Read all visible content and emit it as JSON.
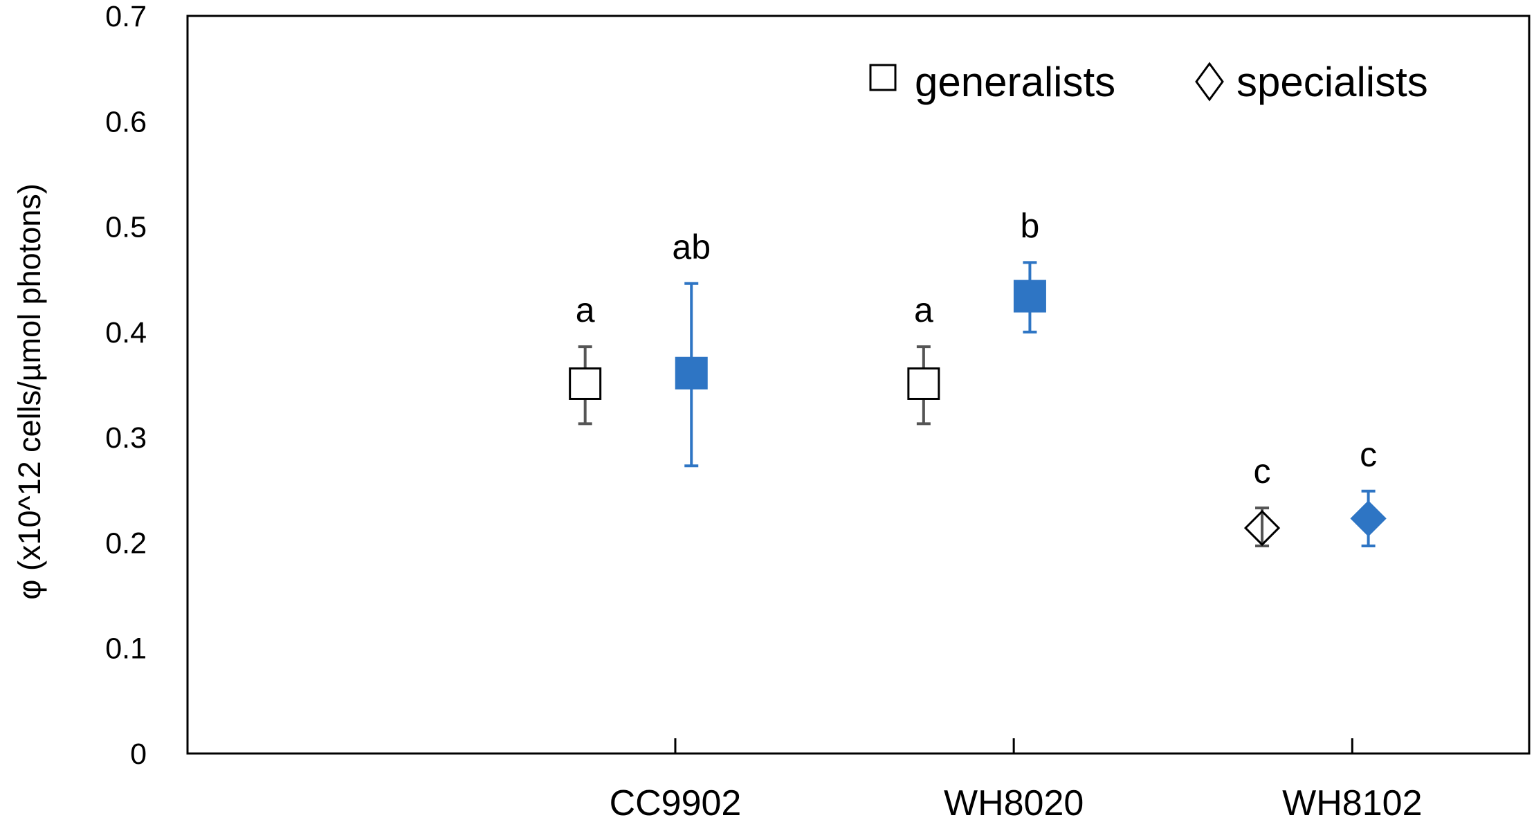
{
  "chart_data": {
    "type": "scatter",
    "title": "",
    "xlabel": "",
    "ylabel": "φ (x10^12 cells/µmol photons)",
    "ylim": [
      0,
      0.7
    ],
    "yticks": [
      "0",
      "0.1",
      "0.2",
      "0.3",
      "0.4",
      "0.5",
      "0.6",
      "0.7"
    ],
    "categories": [
      "CC9902",
      "WH8020",
      "WH8102"
    ],
    "legend": {
      "position": "top-right",
      "entries": [
        {
          "label": "generalists",
          "marker": "square"
        },
        {
          "label": "specialists",
          "marker": "diamond"
        }
      ]
    },
    "colors": {
      "open": "#000000",
      "filled": "#2e75c4",
      "open_error": "#555555"
    },
    "points": [
      {
        "category": "CC9902",
        "slot": 0,
        "marker": "square",
        "fill": "open",
        "value": 0.351,
        "err_low": 0.313,
        "err_high": 0.386,
        "label": "a"
      },
      {
        "category": "CC9902",
        "slot": 1,
        "marker": "square",
        "fill": "filled",
        "value": 0.361,
        "err_low": 0.273,
        "err_high": 0.446,
        "label": "ab"
      },
      {
        "category": "WH8020",
        "slot": 0,
        "marker": "square",
        "fill": "open",
        "value": 0.351,
        "err_low": 0.313,
        "err_high": 0.386,
        "label": "a"
      },
      {
        "category": "WH8020",
        "slot": 1,
        "marker": "square",
        "fill": "filled",
        "value": 0.434,
        "err_low": 0.4,
        "err_high": 0.466,
        "label": "b"
      },
      {
        "category": "WH8102",
        "slot": 0,
        "marker": "diamond",
        "fill": "open",
        "value": 0.214,
        "err_low": 0.197,
        "err_high": 0.233,
        "label": "c"
      },
      {
        "category": "WH8102",
        "slot": 1,
        "marker": "diamond",
        "fill": "filled",
        "value": 0.223,
        "err_low": 0.197,
        "err_high": 0.249,
        "label": "c"
      }
    ]
  }
}
